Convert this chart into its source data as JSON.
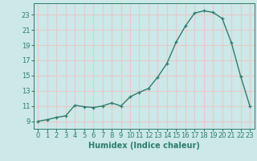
{
  "x": [
    0,
    1,
    2,
    3,
    4,
    5,
    6,
    7,
    8,
    9,
    10,
    11,
    12,
    13,
    14,
    15,
    16,
    17,
    18,
    19,
    20,
    21,
    22,
    23
  ],
  "y": [
    9.0,
    9.2,
    9.5,
    9.7,
    11.1,
    10.9,
    10.8,
    11.0,
    11.4,
    11.0,
    12.2,
    12.8,
    13.3,
    14.8,
    16.6,
    19.4,
    21.5,
    23.2,
    23.5,
    23.3,
    22.5,
    19.3,
    14.9,
    11.0
  ],
  "xlabel": "Humidex (Indice chaleur)",
  "line_color": "#2e7d6e",
  "marker": "+",
  "bg_color": "#cce8e8",
  "grid_color": "#e8c8c8",
  "xlim": [
    -0.5,
    23.5
  ],
  "ylim": [
    8.0,
    24.5
  ],
  "xticks": [
    0,
    1,
    2,
    3,
    4,
    5,
    6,
    7,
    8,
    9,
    10,
    11,
    12,
    13,
    14,
    15,
    16,
    17,
    18,
    19,
    20,
    21,
    22,
    23
  ],
  "yticks": [
    9,
    11,
    13,
    15,
    17,
    19,
    21,
    23
  ],
  "xlabel_fontsize": 7,
  "tick_fontsize": 6,
  "line_width": 1.0,
  "marker_size": 3.5
}
